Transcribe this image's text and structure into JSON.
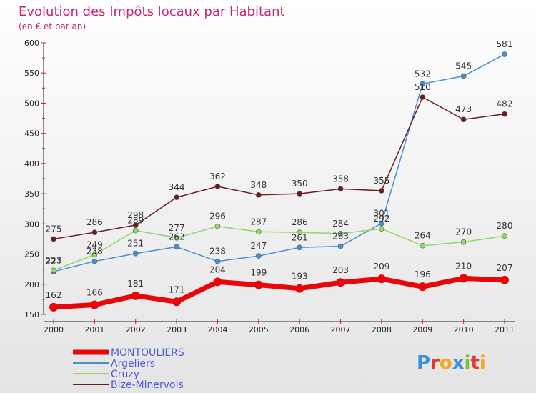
{
  "chart_data": {
    "type": "line",
    "title": "Evolution des Impôts locaux par Habitant",
    "subtitle": "(en € et par an)",
    "xlabel": "",
    "ylabel": "",
    "x": [
      "2000",
      "2001",
      "2002",
      "2003",
      "2004",
      "2005",
      "2006",
      "2007",
      "2008",
      "2009",
      "2010",
      "2011"
    ],
    "ylim": [
      150,
      600
    ],
    "yticks": [
      150,
      200,
      250,
      300,
      350,
      400,
      450,
      500,
      550,
      600
    ],
    "grid": false,
    "legend_position": "bottom-left",
    "series": [
      {
        "name": "MONTOULIERS",
        "color": "#e8060a",
        "bold": true,
        "values": [
          162,
          166,
          181,
          171,
          204,
          199,
          193,
          203,
          209,
          196,
          210,
          207
        ]
      },
      {
        "name": "Argeliers",
        "color": "#4a8ed2",
        "bold": false,
        "values": [
          221,
          238,
          251,
          262,
          238,
          247,
          261,
          263,
          301,
          532,
          545,
          581
        ]
      },
      {
        "name": "Cruzy",
        "color": "#8ed864",
        "bold": false,
        "values": [
          223,
          249,
          289,
          277,
          296,
          287,
          286,
          284,
          292,
          264,
          270,
          280
        ]
      },
      {
        "name": "Bize-Minervois",
        "color": "#6a1c20",
        "bold": false,
        "values": [
          275,
          286,
          298,
          344,
          362,
          348,
          350,
          358,
          355,
          510,
          473,
          482
        ]
      }
    ]
  },
  "logo": {
    "letters": [
      "P",
      "r",
      "o",
      "x",
      "i",
      "t",
      "i"
    ],
    "colors": [
      "#3a8ee6",
      "#e23a2a",
      "#f5a623",
      "#3a8ee6",
      "#7bc043",
      "#e23a2a",
      "#f5a623"
    ]
  }
}
